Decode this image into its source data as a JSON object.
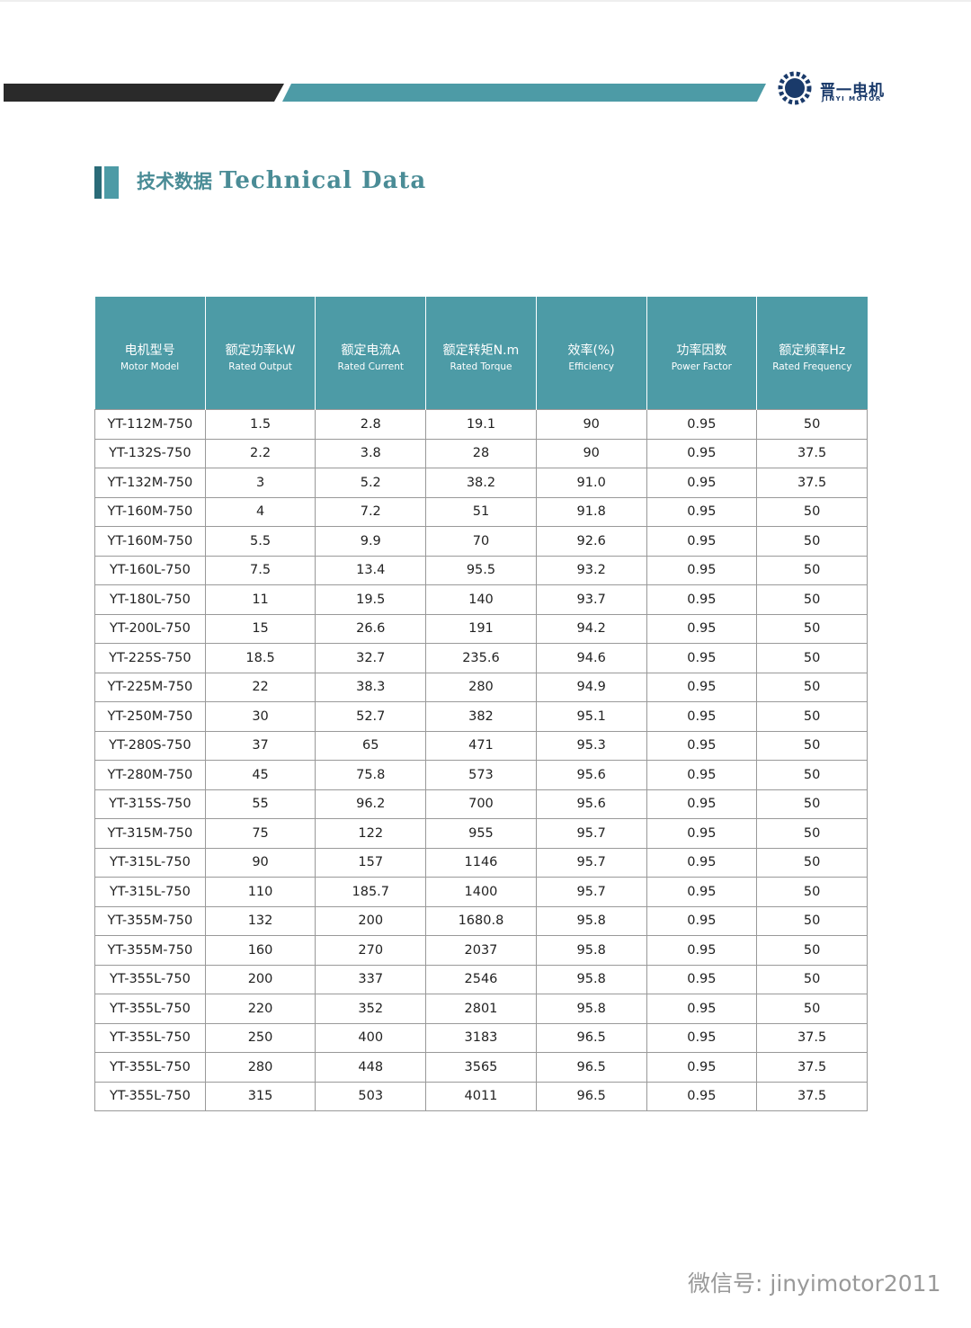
{
  "header": {
    "brand": "晋一电机",
    "brand_en": "JINYI MOTOR",
    "title_zh": "技术数据",
    "title_en": "Technical Data"
  },
  "table": {
    "columns": [
      {
        "zh": "电机型号",
        "en": "Motor Model"
      },
      {
        "zh": "额定功率kW",
        "en": "Rated Output"
      },
      {
        "zh": "额定电流A",
        "en": "Rated Current"
      },
      {
        "zh": "额定转矩N.m",
        "en": "Rated Torque"
      },
      {
        "zh": "效率(%)",
        "en": "Efficiency"
      },
      {
        "zh": "功率因数",
        "en": "Power Factor"
      },
      {
        "zh": "额定频率Hz",
        "en": "Rated Frequency"
      }
    ],
    "rows": [
      [
        "YT-112M-750",
        "1.5",
        "2.8",
        "19.1",
        "90",
        "0.95",
        "50"
      ],
      [
        "YT-132S-750",
        "2.2",
        "3.8",
        "28",
        "90",
        "0.95",
        "37.5"
      ],
      [
        "YT-132M-750",
        "3",
        "5.2",
        "38.2",
        "91.0",
        "0.95",
        "37.5"
      ],
      [
        "YT-160M-750",
        "4",
        "7.2",
        "51",
        "91.8",
        "0.95",
        "50"
      ],
      [
        "YT-160M-750",
        "5.5",
        "9.9",
        "70",
        "92.6",
        "0.95",
        "50"
      ],
      [
        "YT-160L-750",
        "7.5",
        "13.4",
        "95.5",
        "93.2",
        "0.95",
        "50"
      ],
      [
        "YT-180L-750",
        "11",
        "19.5",
        "140",
        "93.7",
        "0.95",
        "50"
      ],
      [
        "YT-200L-750",
        "15",
        "26.6",
        "191",
        "94.2",
        "0.95",
        "50"
      ],
      [
        "YT-225S-750",
        "18.5",
        "32.7",
        "235.6",
        "94.6",
        "0.95",
        "50"
      ],
      [
        "YT-225M-750",
        "22",
        "38.3",
        "280",
        "94.9",
        "0.95",
        "50"
      ],
      [
        "YT-250M-750",
        "30",
        "52.7",
        "382",
        "95.1",
        "0.95",
        "50"
      ],
      [
        "YT-280S-750",
        "37",
        "65",
        "471",
        "95.3",
        "0.95",
        "50"
      ],
      [
        "YT-280M-750",
        "45",
        "75.8",
        "573",
        "95.6",
        "0.95",
        "50"
      ],
      [
        "YT-315S-750",
        "55",
        "96.2",
        "700",
        "95.6",
        "0.95",
        "50"
      ],
      [
        "YT-315M-750",
        "75",
        "122",
        "955",
        "95.7",
        "0.95",
        "50"
      ],
      [
        "YT-315L-750",
        "90",
        "157",
        "1146",
        "95.7",
        "0.95",
        "50"
      ],
      [
        "YT-315L-750",
        "110",
        "185.7",
        "1400",
        "95.7",
        "0.95",
        "50"
      ],
      [
        "YT-355M-750",
        "132",
        "200",
        "1680.8",
        "95.8",
        "0.95",
        "50"
      ],
      [
        "YT-355M-750",
        "160",
        "270",
        "2037",
        "95.8",
        "0.95",
        "50"
      ],
      [
        "YT-355L-750",
        "200",
        "337",
        "2546",
        "95.8",
        "0.95",
        "50"
      ],
      [
        "YT-355L-750",
        "220",
        "352",
        "2801",
        "95.8",
        "0.95",
        "50"
      ],
      [
        "YT-355L-750",
        "250",
        "400",
        "3183",
        "96.5",
        "0.95",
        "37.5"
      ],
      [
        "YT-355L-750",
        "280",
        "448",
        "3565",
        "96.5",
        "0.95",
        "37.5"
      ],
      [
        "YT-355L-750",
        "315",
        "503",
        "4011",
        "96.5",
        "0.95",
        "37.5"
      ]
    ]
  },
  "footer": {
    "watermark": "微信号: jinyimotor2011"
  }
}
